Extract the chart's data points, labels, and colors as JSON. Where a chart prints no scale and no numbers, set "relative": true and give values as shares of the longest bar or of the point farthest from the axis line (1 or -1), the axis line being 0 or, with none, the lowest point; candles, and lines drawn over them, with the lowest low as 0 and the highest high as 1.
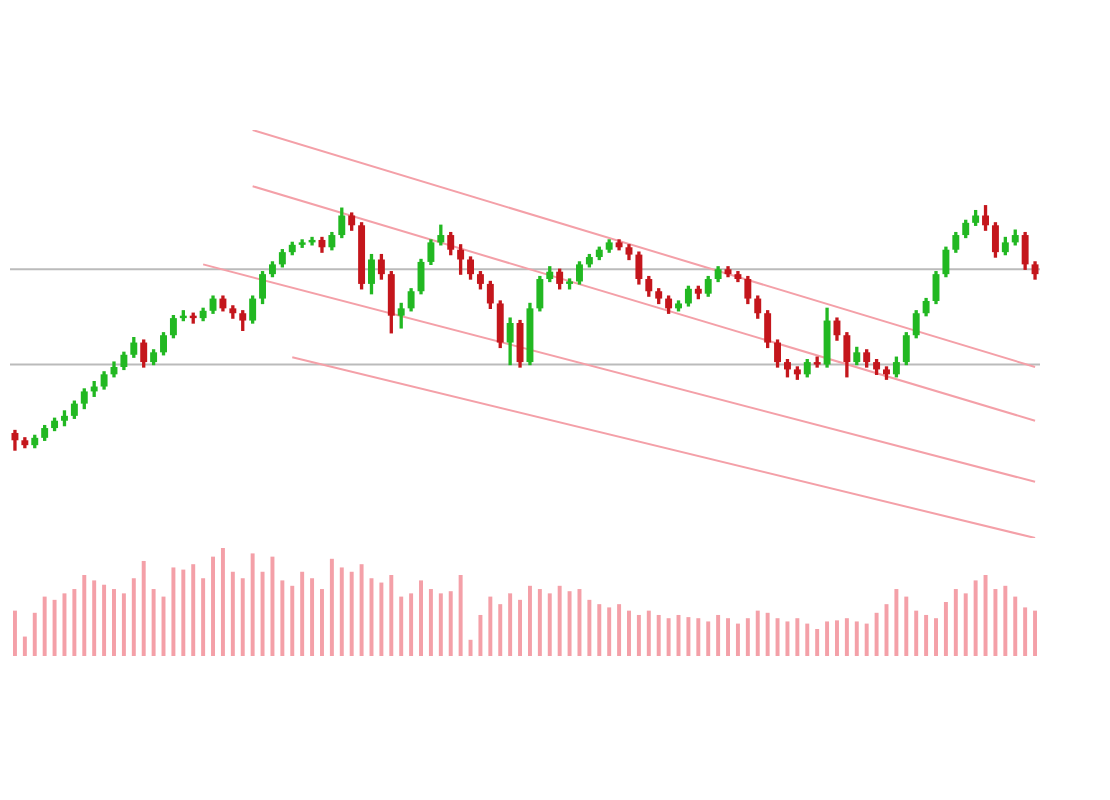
{
  "chart_data": [
    {
      "type": "candlestick",
      "relative": true,
      "categories": [
        null,
        null,
        null,
        null,
        null,
        null,
        null,
        null,
        null,
        null,
        null,
        null,
        null,
        null,
        null,
        null,
        null,
        null,
        null,
        null,
        null,
        null,
        null,
        null,
        null,
        null,
        null,
        null,
        null,
        null,
        null,
        null,
        null,
        null,
        null,
        null,
        null,
        null,
        null,
        null,
        null,
        null,
        null,
        null,
        null,
        null,
        null,
        null,
        null,
        null,
        null,
        null,
        null,
        null,
        null,
        null,
        null,
        null,
        null,
        null,
        null,
        null,
        null,
        null,
        null,
        null,
        null,
        null,
        null,
        null,
        null,
        null,
        null,
        null,
        null,
        null,
        null,
        null,
        null,
        null,
        null,
        null,
        null,
        null,
        null,
        null,
        null,
        null,
        null,
        null,
        null,
        null,
        null,
        null,
        null,
        null,
        null,
        null,
        null,
        null,
        null,
        null,
        null,
        null
      ],
      "ohlc": [
        [
          0.07,
          0.08,
          0,
          0.04
        ],
        [
          0.04,
          0.05,
          0.01,
          0.02
        ],
        [
          0.02,
          0.06,
          0.01,
          0.05
        ],
        [
          0.05,
          0.1,
          0.04,
          0.09
        ],
        [
          0.09,
          0.13,
          0.08,
          0.12
        ],
        [
          0.12,
          0.16,
          0.1,
          0.14
        ],
        [
          0.14,
          0.2,
          0.13,
          0.19
        ],
        [
          0.19,
          0.25,
          0.17,
          0.24
        ],
        [
          0.24,
          0.28,
          0.22,
          0.26
        ],
        [
          0.26,
          0.32,
          0.25,
          0.31
        ],
        [
          0.31,
          0.36,
          0.3,
          0.34
        ],
        [
          0.34,
          0.4,
          0.33,
          0.39
        ],
        [
          0.39,
          0.46,
          0.38,
          0.44
        ],
        [
          0.44,
          0.45,
          0.34,
          0.36
        ],
        [
          0.36,
          0.41,
          0.35,
          0.4
        ],
        [
          0.4,
          0.48,
          0.39,
          0.47
        ],
        [
          0.47,
          0.55,
          0.46,
          0.54
        ],
        [
          0.54,
          0.57,
          0.53,
          0.55
        ],
        [
          0.55,
          0.56,
          0.52,
          0.54
        ],
        [
          0.54,
          0.58,
          0.53,
          0.57
        ],
        [
          0.57,
          0.63,
          0.56,
          0.62
        ],
        [
          0.62,
          0.63,
          0.57,
          0.58
        ],
        [
          0.58,
          0.59,
          0.54,
          0.56
        ],
        [
          0.56,
          0.57,
          0.49,
          0.53
        ],
        [
          0.53,
          0.63,
          0.52,
          0.62
        ],
        [
          0.62,
          0.73,
          0.6,
          0.72
        ],
        [
          0.72,
          0.77,
          0.71,
          0.76
        ],
        [
          0.76,
          0.82,
          0.75,
          0.81
        ],
        [
          0.81,
          0.85,
          0.8,
          0.84
        ],
        [
          0.84,
          0.86,
          0.83,
          0.85
        ],
        [
          0.85,
          0.87,
          0.84,
          0.86
        ],
        [
          0.86,
          0.87,
          0.81,
          0.83
        ],
        [
          0.83,
          0.89,
          0.82,
          0.88
        ],
        [
          0.88,
          0.99,
          0.87,
          0.96
        ],
        [
          0.96,
          0.97,
          0.9,
          0.92
        ],
        [
          0.92,
          0.93,
          0.66,
          0.68
        ],
        [
          0.68,
          0.8,
          0.64,
          0.78
        ],
        [
          0.78,
          0.8,
          0.7,
          0.72
        ],
        [
          0.72,
          0.73,
          0.48,
          0.55
        ],
        [
          0.55,
          0.6,
          0.5,
          0.58
        ],
        [
          0.58,
          0.66,
          0.57,
          0.65
        ],
        [
          0.65,
          0.78,
          0.64,
          0.77
        ],
        [
          0.77,
          0.86,
          0.76,
          0.85
        ],
        [
          0.85,
          0.92,
          0.84,
          0.88
        ],
        [
          0.88,
          0.89,
          0.8,
          0.82
        ],
        [
          0.82,
          0.84,
          0.72,
          0.78
        ],
        [
          0.78,
          0.79,
          0.7,
          0.72
        ],
        [
          0.72,
          0.73,
          0.66,
          0.68
        ],
        [
          0.68,
          0.69,
          0.58,
          0.6
        ],
        [
          0.6,
          0.61,
          0.42,
          0.44
        ],
        [
          0.44,
          0.54,
          0.35,
          0.52
        ],
        [
          0.52,
          0.53,
          0.34,
          0.36
        ],
        [
          0.36,
          0.6,
          0.35,
          0.58
        ],
        [
          0.58,
          0.71,
          0.57,
          0.7
        ],
        [
          0.7,
          0.75,
          0.69,
          0.73
        ],
        [
          0.73,
          0.74,
          0.66,
          0.68
        ],
        [
          0.68,
          0.7,
          0.66,
          0.69
        ],
        [
          0.69,
          0.77,
          0.68,
          0.76
        ],
        [
          0.76,
          0.8,
          0.75,
          0.79
        ],
        [
          0.79,
          0.83,
          0.78,
          0.82
        ],
        [
          0.82,
          0.86,
          0.81,
          0.85
        ],
        [
          0.85,
          0.86,
          0.82,
          0.83
        ],
        [
          0.83,
          0.84,
          0.78,
          0.8
        ],
        [
          0.8,
          0.81,
          0.68,
          0.7
        ],
        [
          0.7,
          0.71,
          0.63,
          0.65
        ],
        [
          0.65,
          0.66,
          0.6,
          0.62
        ],
        [
          0.62,
          0.63,
          0.56,
          0.58
        ],
        [
          0.58,
          0.61,
          0.57,
          0.6
        ],
        [
          0.6,
          0.67,
          0.59,
          0.66
        ],
        [
          0.66,
          0.67,
          0.62,
          0.64
        ],
        [
          0.64,
          0.71,
          0.63,
          0.7
        ],
        [
          0.7,
          0.75,
          0.69,
          0.74
        ],
        [
          0.74,
          0.75,
          0.71,
          0.72
        ],
        [
          0.72,
          0.73,
          0.69,
          0.7
        ],
        [
          0.7,
          0.71,
          0.6,
          0.62
        ],
        [
          0.62,
          0.63,
          0.54,
          0.56
        ],
        [
          0.56,
          0.57,
          0.42,
          0.44
        ],
        [
          0.44,
          0.45,
          0.34,
          0.36
        ],
        [
          0.36,
          0.37,
          0.3,
          0.33
        ],
        [
          0.33,
          0.34,
          0.29,
          0.31
        ],
        [
          0.31,
          0.37,
          0.3,
          0.36
        ],
        [
          0.36,
          0.38,
          0.34,
          0.35
        ],
        [
          0.35,
          0.58,
          0.34,
          0.53
        ],
        [
          0.53,
          0.54,
          0.45,
          0.47
        ],
        [
          0.47,
          0.48,
          0.3,
          0.36
        ],
        [
          0.36,
          0.42,
          0.35,
          0.4
        ],
        [
          0.4,
          0.41,
          0.34,
          0.36
        ],
        [
          0.36,
          0.37,
          0.31,
          0.33
        ],
        [
          0.33,
          0.34,
          0.29,
          0.31
        ],
        [
          0.31,
          0.38,
          0.3,
          0.36
        ],
        [
          0.36,
          0.48,
          0.35,
          0.47
        ],
        [
          0.47,
          0.57,
          0.46,
          0.56
        ],
        [
          0.56,
          0.62,
          0.55,
          0.61
        ],
        [
          0.61,
          0.73,
          0.6,
          0.72
        ],
        [
          0.72,
          0.83,
          0.71,
          0.82
        ],
        [
          0.82,
          0.89,
          0.81,
          0.88
        ],
        [
          0.88,
          0.94,
          0.87,
          0.93
        ],
        [
          0.93,
          0.98,
          0.92,
          0.96
        ],
        [
          0.96,
          1,
          0.9,
          0.92
        ],
        [
          0.92,
          0.93,
          0.79,
          0.81
        ],
        [
          0.81,
          0.87,
          0.8,
          0.85
        ],
        [
          0.85,
          0.9,
          0.84,
          0.88
        ],
        [
          0.88,
          0.89,
          0.74,
          0.76
        ],
        [
          0.76,
          0.77,
          0.7,
          0.72
        ]
      ],
      "series": [
        {
          "type": "line",
          "color": "#f4a0a8",
          "values": [
            null,
            null,
            null,
            null,
            null,
            null,
            null,
            null,
            null,
            null,
            null,
            null,
            null,
            null,
            null,
            null,
            null,
            null,
            null,
            null,
            null,
            null,
            null,
            null,
            1.31,
            null,
            null,
            null,
            null,
            null,
            null,
            null,
            null,
            null,
            null,
            null,
            null,
            null,
            null,
            null,
            null,
            null,
            null,
            null,
            null,
            null,
            null,
            null,
            null,
            null,
            null,
            null,
            null,
            null,
            null,
            null,
            null,
            null,
            null,
            null,
            null,
            null,
            null,
            null,
            null,
            null,
            null,
            null,
            null,
            null,
            null,
            null,
            null,
            null,
            null,
            null,
            null,
            null,
            null,
            null,
            null,
            null,
            null,
            null,
            null,
            null,
            null,
            null,
            null,
            null,
            null,
            null,
            null,
            null,
            null,
            null,
            null,
            null,
            null,
            null,
            null,
            null,
            null,
            0.34
          ]
        },
        {
          "type": "line",
          "color": "#f4a0a8",
          "values": [
            null,
            null,
            null,
            null,
            null,
            null,
            null,
            null,
            null,
            null,
            null,
            null,
            null,
            null,
            null,
            null,
            null,
            null,
            null,
            null,
            null,
            null,
            null,
            null,
            1.08,
            null,
            null,
            null,
            null,
            null,
            null,
            null,
            null,
            null,
            null,
            null,
            null,
            null,
            null,
            null,
            null,
            null,
            null,
            null,
            null,
            null,
            null,
            null,
            null,
            null,
            null,
            null,
            null,
            null,
            null,
            null,
            null,
            null,
            null,
            null,
            null,
            null,
            null,
            null,
            null,
            null,
            null,
            null,
            null,
            null,
            null,
            null,
            null,
            null,
            null,
            null,
            null,
            null,
            null,
            null,
            null,
            null,
            null,
            null,
            null,
            null,
            null,
            null,
            null,
            null,
            null,
            null,
            null,
            null,
            null,
            null,
            null,
            null,
            null,
            null,
            null,
            null,
            null,
            0.12
          ]
        },
        {
          "type": "line",
          "color": "#f4a0a8",
          "values": [
            null,
            null,
            null,
            null,
            null,
            null,
            null,
            null,
            null,
            null,
            null,
            null,
            null,
            null,
            null,
            null,
            null,
            null,
            null,
            0.76,
            null,
            null,
            null,
            null,
            null,
            null,
            null,
            null,
            null,
            null,
            null,
            null,
            null,
            null,
            null,
            null,
            null,
            null,
            null,
            null,
            null,
            null,
            null,
            null,
            null,
            null,
            null,
            null,
            null,
            null,
            null,
            null,
            null,
            null,
            null,
            null,
            null,
            null,
            null,
            null,
            null,
            null,
            null,
            null,
            null,
            null,
            null,
            null,
            null,
            null,
            null,
            null,
            null,
            null,
            null,
            null,
            null,
            null,
            null,
            null,
            null,
            null,
            null,
            null,
            null,
            null,
            null,
            null,
            null,
            null,
            null,
            null,
            null,
            null,
            null,
            null,
            null,
            null,
            null,
            null,
            null,
            null,
            null,
            -0.13
          ]
        },
        {
          "type": "line",
          "color": "#f4a0a8",
          "values": [
            null,
            null,
            null,
            null,
            null,
            null,
            null,
            null,
            null,
            null,
            null,
            null,
            null,
            null,
            null,
            null,
            null,
            null,
            null,
            null,
            null,
            null,
            null,
            null,
            null,
            null,
            null,
            null,
            0.38,
            null,
            null,
            null,
            null,
            null,
            null,
            null,
            null,
            null,
            null,
            null,
            null,
            null,
            null,
            null,
            null,
            null,
            null,
            null,
            null,
            null,
            null,
            null,
            null,
            null,
            null,
            null,
            null,
            null,
            null,
            null,
            null,
            null,
            null,
            null,
            null,
            null,
            null,
            null,
            null,
            null,
            null,
            null,
            null,
            null,
            null,
            null,
            null,
            null,
            null,
            null,
            null,
            null,
            null,
            null,
            null,
            null,
            null,
            null,
            null,
            null,
            null,
            null,
            null,
            null,
            null,
            null,
            null,
            null,
            null,
            null,
            null,
            null,
            null,
            -0.36
          ]
        }
      ],
      "ref_lines": [
        {
          "axis": "y",
          "value": 0.74,
          "color": "#bbbbbb"
        },
        {
          "axis": "y",
          "value": 0.35,
          "color": "#bbbbbb"
        }
      ]
    },
    {
      "type": "bar",
      "relative": true,
      "color": "#f4a0a8",
      "categories": [
        null,
        null,
        null,
        null,
        null,
        null,
        null,
        null,
        null,
        null,
        null,
        null,
        null,
        null,
        null,
        null,
        null,
        null,
        null,
        null,
        null,
        null,
        null,
        null,
        null,
        null,
        null,
        null,
        null,
        null,
        null,
        null,
        null,
        null,
        null,
        null,
        null,
        null,
        null,
        null,
        null,
        null,
        null,
        null,
        null,
        null,
        null,
        null,
        null,
        null,
        null,
        null,
        null,
        null,
        null,
        null,
        null,
        null,
        null,
        null,
        null,
        null,
        null,
        null,
        null,
        null,
        null,
        null,
        null,
        null,
        null,
        null,
        null,
        null,
        null,
        null,
        null,
        null,
        null,
        null,
        null,
        null,
        null,
        null,
        null,
        null,
        null,
        null,
        null,
        null,
        null,
        null,
        null,
        null,
        null,
        null,
        null,
        null,
        null,
        null,
        null,
        null,
        null,
        null
      ],
      "values": [
        0.42,
        0.18,
        0.4,
        0.55,
        0.52,
        0.58,
        0.62,
        0.75,
        0.7,
        0.66,
        0.62,
        0.58,
        0.72,
        0.88,
        0.62,
        0.55,
        0.82,
        0.8,
        0.85,
        0.72,
        0.92,
        1,
        0.78,
        0.72,
        0.95,
        0.78,
        0.92,
        0.7,
        0.65,
        0.78,
        0.72,
        0.62,
        0.9,
        0.82,
        0.78,
        0.85,
        0.72,
        0.68,
        0.75,
        0.55,
        0.58,
        0.7,
        0.62,
        0.58,
        0.6,
        0.75,
        0.15,
        0.38,
        0.55,
        0.48,
        0.58,
        0.52,
        0.65,
        0.62,
        0.58,
        0.65,
        0.6,
        0.62,
        0.52,
        0.48,
        0.45,
        0.48,
        0.42,
        0.38,
        0.42,
        0.38,
        0.35,
        0.38,
        0.36,
        0.35,
        0.32,
        0.38,
        0.35,
        0.3,
        0.35,
        0.42,
        0.4,
        0.35,
        0.32,
        0.35,
        0.3,
        0.25,
        0.32,
        0.33,
        0.35,
        0.32,
        0.3,
        0.4,
        0.48,
        0.62,
        0.55,
        0.42,
        0.38,
        0.35,
        0.5,
        0.62,
        0.58,
        0.7,
        0.75,
        0.62,
        0.65,
        0.55,
        0.45,
        0.42
      ]
    }
  ]
}
